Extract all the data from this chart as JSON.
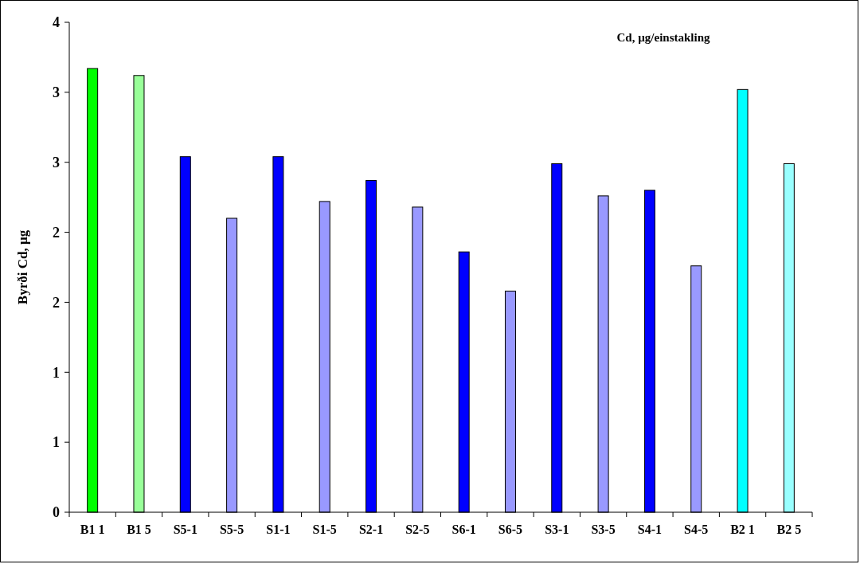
{
  "chart_data": {
    "type": "bar",
    "title": "Cd, µg/einstakling",
    "ylabel": "Byrði Cd, µg",
    "categories": [
      "B1 1",
      "B1 5",
      "S5-1",
      "S5-5",
      "S1-1",
      "S1-5",
      "S2-1",
      "S2-5",
      "S6-1",
      "S6-5",
      "S3-1",
      "S3-5",
      "S4-1",
      "S4-5",
      "B2 1",
      "B2 5"
    ],
    "values": [
      3.17,
      3.12,
      2.54,
      2.1,
      2.54,
      2.22,
      2.37,
      2.18,
      1.86,
      1.58,
      2.49,
      2.26,
      2.3,
      1.76,
      3.02,
      2.49
    ],
    "colors": [
      "#00ff00",
      "#99ff99",
      "#0000ff",
      "#9999ff",
      "#0000ff",
      "#9999ff",
      "#0000ff",
      "#9999ff",
      "#0000ff",
      "#9999ff",
      "#0000ff",
      "#9999ff",
      "#0000ff",
      "#9999ff",
      "#00ffff",
      "#99ffff"
    ],
    "ylim": [
      0,
      3.5
    ],
    "yticks": [
      0,
      {
        "value": 0.5,
        "label": "1"
      },
      1,
      {
        "value": 1.5,
        "label": "2"
      },
      2,
      {
        "value": 2.5,
        "label": "3"
      },
      3,
      {
        "value": 3.5,
        "label": "4"
      }
    ],
    "grid": false
  }
}
